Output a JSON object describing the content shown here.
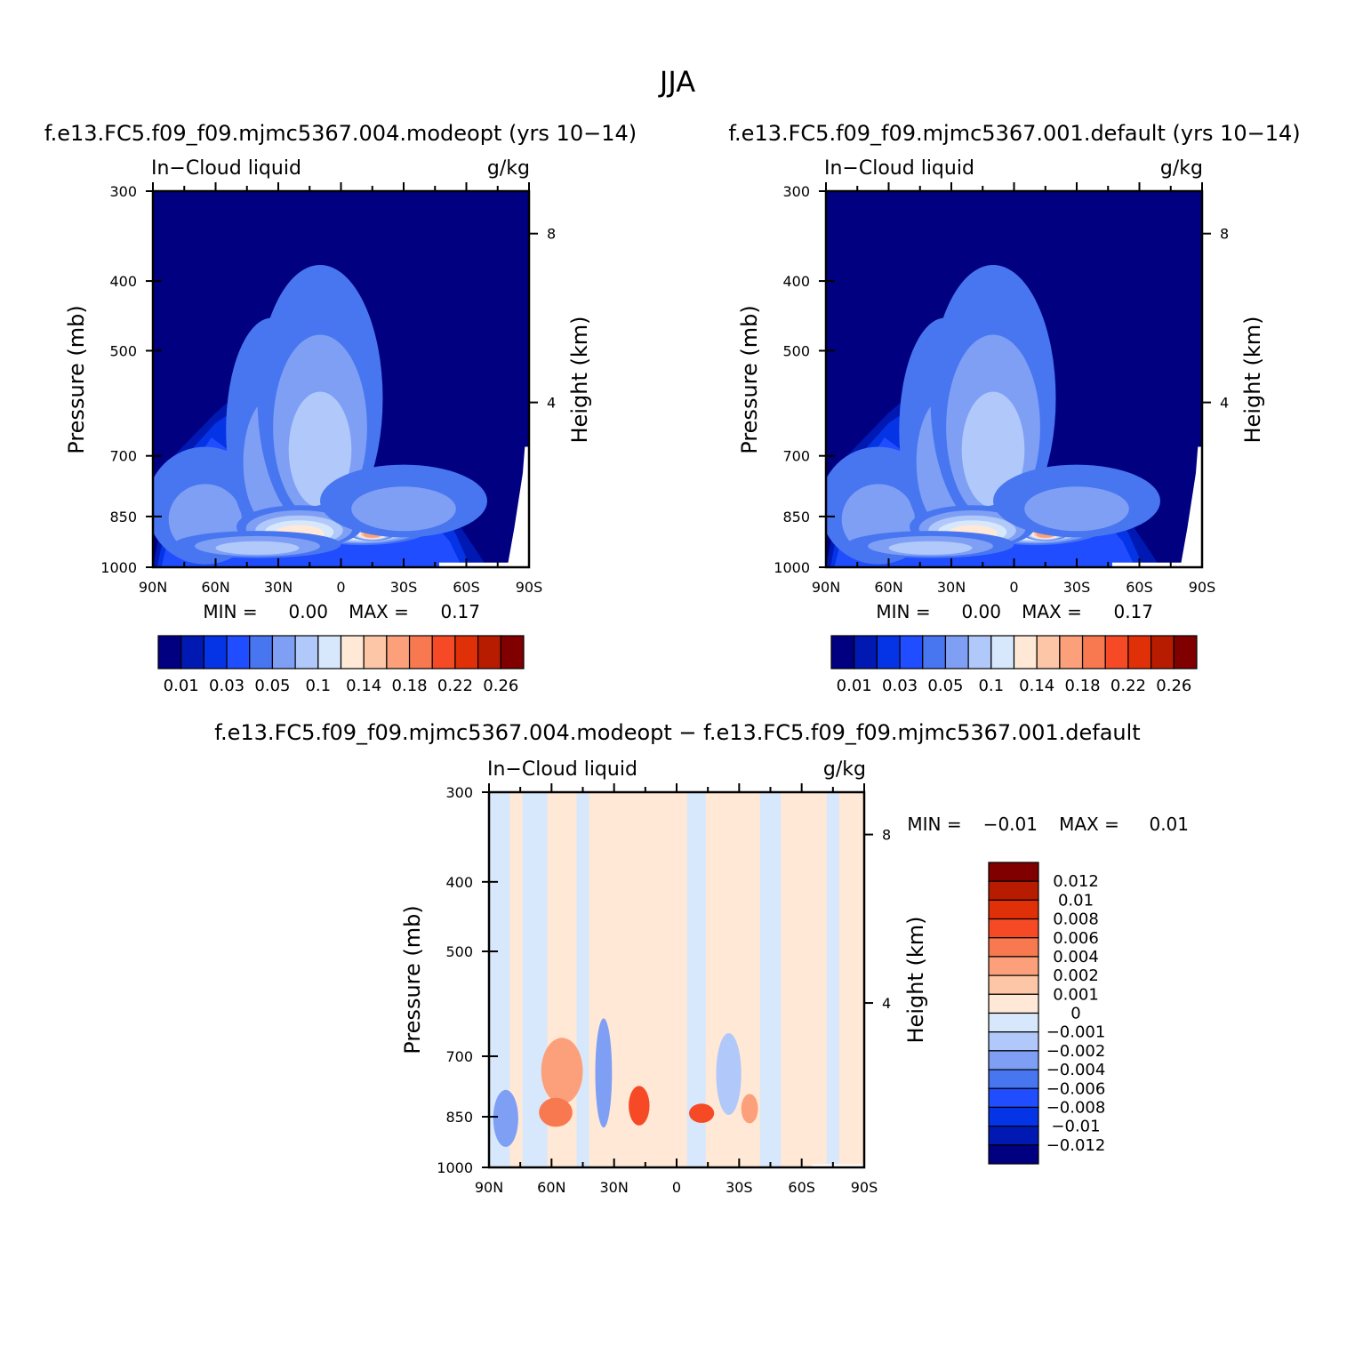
{
  "figure": {
    "title": "JJA"
  },
  "colors": {
    "abs_scale": [
      "#000080",
      "#0019b3",
      "#0533e6",
      "#1f4dff",
      "#4776f0",
      "#7f9ff5",
      "#b0c8fa",
      "#d8e8fc",
      "#ffe8d6",
      "#fdc6a6",
      "#fba07a",
      "#f87850",
      "#f54a25",
      "#e03008",
      "#b81c00",
      "#800000"
    ],
    "diff_scale": [
      "#000080",
      "#0019b3",
      "#0533e6",
      "#1f4dff",
      "#4776f0",
      "#7f9ff5",
      "#b0c8fa",
      "#d8e8fc",
      "#ffe8d6",
      "#fdc6a6",
      "#fba07a",
      "#f87850",
      "#f54a25",
      "#e03008",
      "#b81c00",
      "#800000"
    ]
  },
  "chart_data": [
    {
      "id": "panel-a",
      "type": "heatmap",
      "title": "f.e13.FC5.f09_f09.mjmc5367.004.modeopt (yrs 10−14)",
      "left_label": "In−Cloud liquid",
      "right_label": "g/kg",
      "ylabel": "Pressure (mb)",
      "y2label": "Height (km)",
      "x_ticks": [
        "90N",
        "60N",
        "30N",
        "0",
        "30S",
        "60S",
        "90S"
      ],
      "y_ticks": [
        "300",
        "400",
        "500",
        "700",
        "850",
        "1000"
      ],
      "y_tick_values": [
        300,
        400,
        500,
        700,
        850,
        1000
      ],
      "y2_ticks": [
        "8",
        "4"
      ],
      "y2_tick_values": [
        8,
        4
      ],
      "ylim": [
        1000,
        300
      ],
      "xlim": [
        90,
        -90
      ],
      "min_label": "MIN =",
      "min_value": "0.00",
      "max_label": "MAX =",
      "max_value": "0.17",
      "colorbar_labels": [
        "0.01",
        "0.03",
        "0.05",
        "0.1",
        "0.14",
        "0.18",
        "0.22",
        "0.26"
      ],
      "blobs": [
        {
          "lat": 65,
          "p": 910,
          "wx": 28,
          "wp": 230,
          "level": 5
        },
        {
          "lat": 33,
          "p": 800,
          "wx": 22,
          "wp": 350,
          "level": 5
        },
        {
          "lat": 10,
          "p": 760,
          "wx": 30,
          "wp": 380,
          "level": 6
        },
        {
          "lat": -10,
          "p": 900,
          "wx": 36,
          "wp": 90,
          "level": 8
        },
        {
          "lat": -15,
          "p": 905,
          "wx": 12,
          "wp": 40,
          "level": 10
        },
        {
          "lat": 20,
          "p": 910,
          "wx": 30,
          "wp": 90,
          "level": 8
        },
        {
          "lat": -30,
          "p": 860,
          "wx": 40,
          "wp": 140,
          "level": 5
        },
        {
          "lat": 40,
          "p": 950,
          "wx": 40,
          "wp": 60,
          "level": 6
        }
      ]
    },
    {
      "id": "panel-b",
      "type": "heatmap",
      "title": "f.e13.FC5.f09_f09.mjmc5367.001.default (yrs 10−14)",
      "left_label": "In−Cloud liquid",
      "right_label": "g/kg",
      "ylabel": "Pressure (mb)",
      "y2label": "Height (km)",
      "x_ticks": [
        "90N",
        "60N",
        "30N",
        "0",
        "30S",
        "60S",
        "90S"
      ],
      "y_ticks": [
        "300",
        "400",
        "500",
        "700",
        "850",
        "1000"
      ],
      "y_tick_values": [
        300,
        400,
        500,
        700,
        850,
        1000
      ],
      "y2_ticks": [
        "8",
        "4"
      ],
      "y2_tick_values": [
        8,
        4
      ],
      "ylim": [
        1000,
        300
      ],
      "xlim": [
        90,
        -90
      ],
      "min_label": "MIN =",
      "min_value": "0.00",
      "max_label": "MAX =",
      "max_value": "0.17",
      "colorbar_labels": [
        "0.01",
        "0.03",
        "0.05",
        "0.1",
        "0.14",
        "0.18",
        "0.22",
        "0.26"
      ],
      "blobs": [
        {
          "lat": 65,
          "p": 910,
          "wx": 28,
          "wp": 230,
          "level": 5
        },
        {
          "lat": 33,
          "p": 800,
          "wx": 22,
          "wp": 350,
          "level": 5
        },
        {
          "lat": 10,
          "p": 760,
          "wx": 30,
          "wp": 380,
          "level": 6
        },
        {
          "lat": -10,
          "p": 900,
          "wx": 36,
          "wp": 90,
          "level": 8
        },
        {
          "lat": -15,
          "p": 905,
          "wx": 12,
          "wp": 40,
          "level": 10
        },
        {
          "lat": 20,
          "p": 910,
          "wx": 30,
          "wp": 90,
          "level": 8
        },
        {
          "lat": -30,
          "p": 860,
          "wx": 40,
          "wp": 140,
          "level": 5
        },
        {
          "lat": 40,
          "p": 950,
          "wx": 40,
          "wp": 60,
          "level": 6
        }
      ]
    },
    {
      "id": "panel-c",
      "type": "heatmap",
      "title": "f.e13.FC5.f09_f09.mjmc5367.004.modeopt − f.e13.FC5.f09_f09.mjmc5367.001.default",
      "left_label": "In−Cloud liquid",
      "right_label": "g/kg",
      "ylabel": "Pressure (mb)",
      "y2label": "Height (km)",
      "x_ticks": [
        "90N",
        "60N",
        "30N",
        "0",
        "30S",
        "60S",
        "90S"
      ],
      "y_ticks": [
        "300",
        "400",
        "500",
        "700",
        "850",
        "1000"
      ],
      "y_tick_values": [
        300,
        400,
        500,
        700,
        850,
        1000
      ],
      "y2_ticks": [
        "8",
        "4"
      ],
      "y2_tick_values": [
        8,
        4
      ],
      "ylim": [
        1000,
        300
      ],
      "xlim": [
        90,
        -90
      ],
      "min_label": "MIN =",
      "min_value": "−0.01",
      "max_label": "MAX =",
      "max_value": "0.01",
      "colorbar_labels": [
        "0.012",
        "0.01",
        "0.008",
        "0.006",
        "0.004",
        "0.002",
        "0.001",
        "0",
        "−0.001",
        "−0.002",
        "−0.004",
        "−0.006",
        "−0.008",
        "−0.01",
        "−0.012"
      ],
      "blobs": [
        {
          "lat": 55,
          "p": 780,
          "wx": 10,
          "wp": 120,
          "value": 0.004
        },
        {
          "lat": 58,
          "p": 860,
          "wx": 8,
          "wp": 60,
          "value": 0.006
        },
        {
          "lat": 18,
          "p": 850,
          "wx": 5,
          "wp": 80,
          "value": 0.008
        },
        {
          "lat": -12,
          "p": 855,
          "wx": 6,
          "wp": 40,
          "value": 0.008
        },
        {
          "lat": 35,
          "p": 820,
          "wx": 4,
          "wp": 200,
          "value": -0.003
        },
        {
          "lat": -25,
          "p": 800,
          "wx": 6,
          "wp": 150,
          "value": -0.002
        },
        {
          "lat": -35,
          "p": 850,
          "wx": 4,
          "wp": 60,
          "value": 0.004
        },
        {
          "lat": 82,
          "p": 900,
          "wx": 6,
          "wp": 120,
          "value": -0.004
        }
      ]
    }
  ]
}
